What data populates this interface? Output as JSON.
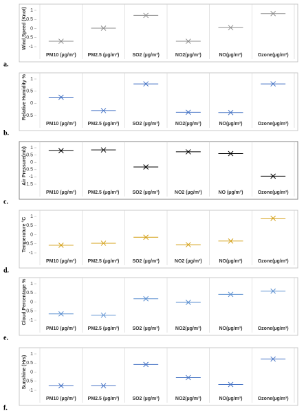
{
  "chart_data": [
    {
      "type": "scatter",
      "panel_label": "a.",
      "y_label": "Wind Speed (Knot)",
      "color": "#8c8c8c",
      "categories": [
        "PM10 (µg/m³)",
        "PM2.5 (µg/m³)",
        "SO2 (µg/m³)",
        "NO2(µg/m³)",
        "NO(µg/m³)",
        "Ozone(µg/m³)"
      ],
      "values": [
        -0.7,
        0.02,
        0.72,
        -0.7,
        0.05,
        0.82
      ],
      "ylim": [
        -1,
        1
      ],
      "yticks": [
        -1,
        -0.5,
        0,
        0.5,
        1
      ]
    },
    {
      "type": "scatter",
      "panel_label": "b.",
      "y_label": "Relative Humidity %",
      "color": "#4472c4",
      "categories": [
        "PM10 (µg/m³)",
        "PM2.5 (µg/m³)",
        "SO2 (µg/m³)",
        "NO2(µg/m³)",
        "NO(µg/m³)",
        "Ozone(µg/m³)"
      ],
      "values": [
        0.25,
        -0.3,
        0.8,
        -0.37,
        -0.38,
        0.8
      ],
      "ylim": [
        -0.5,
        1
      ],
      "yticks": [
        -0.5,
        0,
        0.5,
        1
      ]
    },
    {
      "type": "scatter",
      "panel_label": "c.",
      "y_label": "Air Pressure(mb)",
      "color": "#000000",
      "categories": [
        "PM10 (µg/m³)",
        "PM2.5 (µg/m³)",
        "SO2 (µg/m³)",
        "NO2 (µg/m³)",
        "NO (µg/m³)",
        "Ozone(µg/m³)"
      ],
      "values": [
        0.8,
        0.85,
        -0.32,
        0.72,
        0.6,
        -0.95
      ],
      "ylim": [
        -1.5,
        1
      ],
      "yticks": [
        -1.5,
        -1,
        -0.5,
        0,
        0.5,
        1
      ]
    },
    {
      "type": "scatter",
      "panel_label": "d.",
      "y_label": "Temperature °C",
      "color": "#d4a017",
      "categories": [
        "PM10 (µg/m³)",
        "PM2.5 (µg/m³)",
        "SO2 (µg/m³)",
        "NO2 (µg/m³)",
        "NO(µg/m³)",
        "Ozone(µg/m³)"
      ],
      "values": [
        -0.58,
        -0.47,
        -0.14,
        -0.55,
        -0.35,
        0.9
      ],
      "ylim": [
        -1,
        1
      ],
      "yticks": [
        -1,
        -0.5,
        0,
        0.5,
        1
      ]
    },
    {
      "type": "scatter",
      "panel_label": "e.",
      "y_label": "Cloud Percentage %",
      "color": "#5b8fd0",
      "categories": [
        "PM10 (µg/m³)",
        "PM2.5 (µg/m³)",
        "SO2 (µg/m³)",
        "NO2(µg/m³)",
        "NO(µg/m³)",
        "Ozone(µg/m³)"
      ],
      "values": [
        -0.65,
        -0.72,
        0.18,
        -0.02,
        0.42,
        0.6
      ],
      "ylim": [
        -1,
        1
      ],
      "yticks": [
        -1,
        -0.5,
        0,
        0.5,
        1
      ]
    },
    {
      "type": "scatter",
      "panel_label": "f.",
      "y_label": "Sunshine (Hrs)",
      "color": "#4472c4",
      "categories": [
        "PM10 (µg/m³)",
        "PM2.5 (µg/m³)",
        "SO2 (µg/m³)",
        "NO2(µg/m³)",
        "NO(µg/m³)",
        "Ozone(µg/m³)"
      ],
      "values": [
        -0.75,
        -0.75,
        0.42,
        -0.3,
        -0.68,
        0.72
      ],
      "ylim": [
        -1,
        1
      ],
      "yticks": [
        -1,
        -0.5,
        0,
        0.5,
        1
      ]
    }
  ]
}
